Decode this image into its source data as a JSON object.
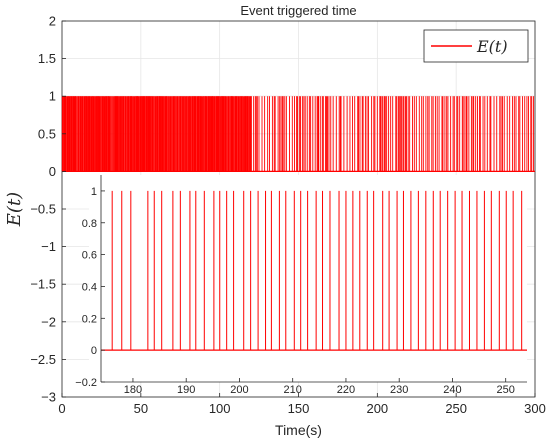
{
  "chart_data": [
    {
      "type": "line",
      "title": "Event triggered time",
      "xlabel": "Time(s)",
      "ylabel": "E(t)",
      "xlim": [
        0,
        300
      ],
      "ylim": [
        -3,
        2
      ],
      "xticks": [
        0,
        50,
        100,
        150,
        200,
        250,
        300
      ],
      "yticks": [
        -3,
        -2.5,
        -2,
        -1.5,
        -1,
        -0.5,
        0,
        0.5,
        1,
        1.5,
        2
      ],
      "grid": true,
      "legend": "top-right",
      "series": [
        {
          "name": "E(t)",
          "color": "#ff0000",
          "description_of_shape": "binary event indicator: value 1 at trigger instants, 0 otherwise",
          "event_density": "events nearly continuous from 0-120 s, sparser 120-300 s",
          "x_range": [
            0,
            300
          ],
          "values_range": [
            0,
            1
          ]
        }
      ]
    },
    {
      "type": "line",
      "title": "",
      "xlabel": "",
      "ylabel": "",
      "xlim": [
        174,
        254
      ],
      "ylim": [
        -0.2,
        1.1
      ],
      "xticks": [
        180,
        190,
        200,
        210,
        220,
        230,
        240,
        250
      ],
      "yticks": [
        -0.2,
        0,
        0.2,
        0.4,
        0.6,
        0.8,
        1
      ],
      "grid": false,
      "series": [
        {
          "name": "E(t)",
          "color": "#ff0000",
          "x": [
            176.1,
            177.9,
            179.6,
            182.8,
            184.0,
            185.4,
            187.5,
            188.9,
            190.7,
            191.8,
            193.4,
            195.2,
            196.3,
            197.6,
            198.9,
            200.8,
            202.1,
            203.5,
            204.9,
            206.0,
            207.5,
            208.7,
            210.3,
            211.5,
            212.8,
            214.4,
            215.6,
            217.0,
            218.7,
            220.0,
            221.3,
            222.6,
            224.0,
            225.2,
            226.9,
            228.1,
            229.6,
            230.8,
            232.2,
            233.6,
            235.0,
            236.4,
            237.7,
            239.1,
            240.5,
            241.8,
            243.2,
            244.6,
            246.0,
            247.3,
            248.8,
            250.1,
            251.4,
            253.0
          ],
          "values": [
            1,
            1,
            1,
            1,
            1,
            1,
            1,
            1,
            1,
            1,
            1,
            1,
            1,
            1,
            1,
            1,
            1,
            1,
            1,
            1,
            1,
            1,
            1,
            1,
            1,
            1,
            1,
            1,
            1,
            1,
            1,
            1,
            1,
            1,
            1,
            1,
            1,
            1,
            1,
            1,
            1,
            1,
            1,
            1,
            1,
            1,
            1,
            1,
            1,
            1,
            1,
            1,
            1,
            1
          ]
        }
      ]
    }
  ]
}
